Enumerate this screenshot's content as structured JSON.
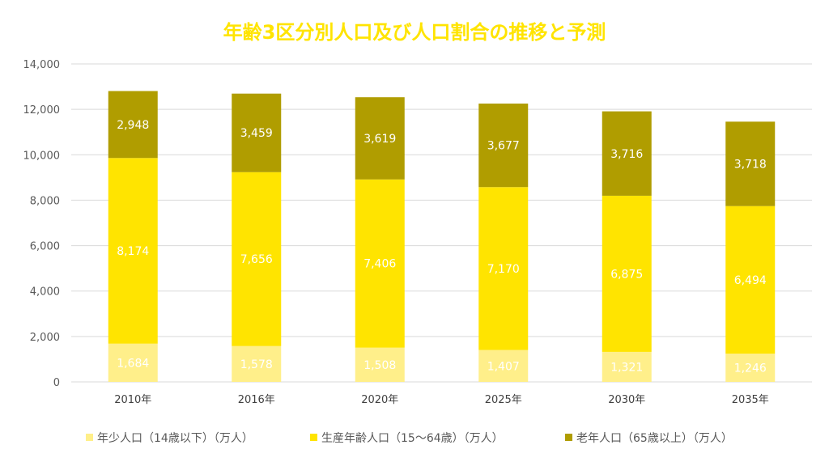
{
  "chart_data": {
    "type": "bar",
    "stacked": true,
    "title": "年齢3区分別人口及び人口割合の推移と予測",
    "xlabel": "",
    "ylabel": "",
    "categories": [
      "2010年",
      "2016年",
      "2020年",
      "2025年",
      "2030年",
      "2035年"
    ],
    "series": [
      {
        "name": "年少人口（14歳以下）（万人）",
        "values": [
          1684,
          1578,
          1508,
          1407,
          1321,
          1246
        ],
        "color": "#FFEF8A"
      },
      {
        "name": "生産年齢人口（15～64歳）（万人）",
        "values": [
          8174,
          7656,
          7406,
          7170,
          6875,
          6494
        ],
        "color": "#FFE400"
      },
      {
        "name": "老年人口（65歳以上）（万人）",
        "values": [
          2948,
          3459,
          3619,
          3677,
          3716,
          3718
        ],
        "color": "#B09D00"
      }
    ],
    "data_labels": [
      [
        "1,684",
        "1,578",
        "1,508",
        "1,407",
        "1,321",
        "1,246"
      ],
      [
        "8,174",
        "7,656",
        "7,406",
        "7,170",
        "6,875",
        "6,494"
      ],
      [
        "2,948",
        "3,459",
        "3,619",
        "3,677",
        "3,716",
        "3,718"
      ]
    ],
    "ylim": [
      0,
      14000
    ],
    "yticks": [
      0,
      2000,
      4000,
      6000,
      8000,
      10000,
      12000,
      14000
    ],
    "ytick_labels": [
      "0",
      "2,000",
      "4,000",
      "6,000",
      "8,000",
      "10,000",
      "12,000",
      "14,000"
    ],
    "grid": true,
    "legend_position": "bottom",
    "title_color": "#FFE400",
    "grid_color": "#D9D9D9"
  }
}
